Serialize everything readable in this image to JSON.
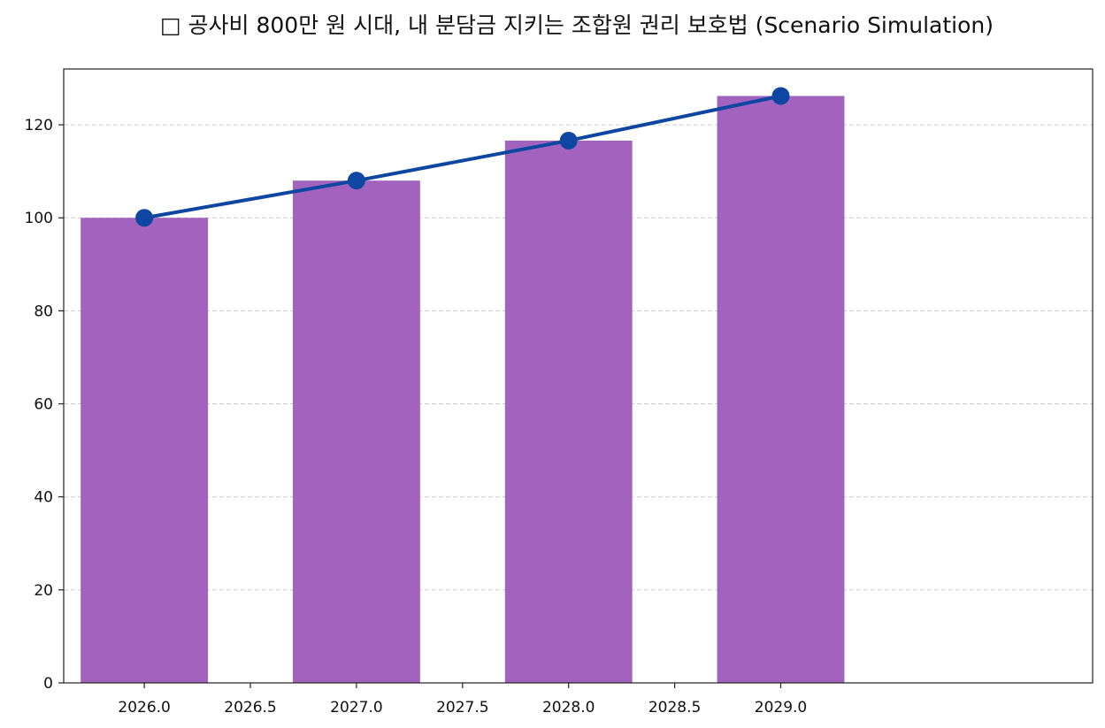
{
  "chart_data": {
    "type": "bar",
    "title": "□ 공사비 800만 원 시대, 내 분담금 지키는 조합원 권리 보호법 (Scenario Simulation)",
    "xlabel": "",
    "ylabel": "",
    "x": [
      2026,
      2027,
      2028,
      2029
    ],
    "xlim": [
      2025.62,
      2030.47
    ],
    "ylim": [
      0,
      132
    ],
    "xticks": [
      "2026.0",
      "2026.5",
      "2027.0",
      "2027.5",
      "2028.0",
      "2028.5",
      "2029.0"
    ],
    "yticks": [
      "0",
      "20",
      "40",
      "60",
      "80",
      "100",
      "120"
    ],
    "grid": "horizontal dashed",
    "series": [
      {
        "type": "bar",
        "values": [
          100,
          108,
          116.6,
          126.2
        ],
        "color": "#a163bd"
      },
      {
        "type": "line",
        "values": [
          100,
          108,
          116.6,
          126.2
        ],
        "color": "#0d47a1",
        "marker": "circle"
      }
    ]
  }
}
